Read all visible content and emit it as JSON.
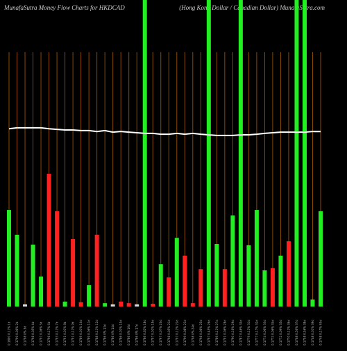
{
  "chart_data": {
    "type": "bar",
    "title": "MunafaSutra  Money  Flow  Charts for HKDCAD",
    "subtitle": "(Hong Kong Dollar / Canadian Dollar) MunafaSutra.com",
    "categories": [
      "0.1800 0.11% 1d",
      "0.1799 0.06% 2d",
      "0.1798 0% 3d",
      "0.1798 0.05% 4d",
      "0.1797 0.06% 5d",
      "0.1796 0.17% 6d",
      "0.1793 0.11% 7d",
      "0.1791 0.01% 8d",
      "0.1791 0.11% 9d",
      "0.1789 0.01% 10d",
      "0.1789 0.06% 11d",
      "0.1788 0.11% 12d",
      "0.1786 0% 13d",
      "0.1786 0% 14d",
      "0.1786 0.01% 15d",
      "0.1786 0% 16d",
      "0.1786 0% 17d",
      "0.1786 0.62% 18d",
      "0.1797 0.01% 19d",
      "0.1797 0.07% 20d",
      "0.1798 0.05% 21d",
      "0.1797 0.11% 22d",
      "0.1799 0.08% 23d",
      "0.1798 0% 24d",
      "0.1798 0.06% 25d",
      "0.1797 0.45% 26d",
      "0.1789 0.11% 27d",
      "0.1791 0.06% 28d",
      "0.1790 0.16% 29d",
      "0.1787 0.46% 30d",
      "0.1779 0.11% 31d",
      "0.1777 0.17% 32d",
      "0.1774 0.06% 33d",
      "0.1773 0.06% 34d",
      "0.1772 0.09% 35d",
      "0.1770 0.11% 36d",
      "0.1768 0.56% 37d",
      "0.1758 0.56% 38d",
      "0.1748 0.01% 39d",
      "0.1748 0.17% 40d"
    ],
    "values": [
      31.5,
      23.4,
      0.7,
      20.2,
      9.8,
      43.3,
      31.1,
      1.6,
      22.0,
      1.4,
      7.0,
      23.4,
      1.1,
      0.7,
      1.6,
      1.1,
      0.7,
      100,
      0.9,
      13.8,
      9.5,
      22.4,
      16.6,
      1.1,
      12.2,
      100,
      20.4,
      12.2,
      29.7,
      100,
      20.0,
      31.5,
      11.8,
      12.5,
      16.6,
      21.3,
      100,
      100,
      2.3,
      31.1
    ],
    "colors": [
      "#22ee22",
      "#22ee22",
      "#dddddd",
      "#22ee22",
      "#22ee22",
      "#ff2020",
      "#ff2020",
      "#22ee22",
      "#ff2020",
      "#ff2020",
      "#22ee22",
      "#ff2020",
      "#22ee22",
      "#dddddd",
      "#ff2020",
      "#ff2020",
      "#dddddd",
      "#22ee22",
      "#ff2020",
      "#22ee22",
      "#ff2020",
      "#22ee22",
      "#ff2020",
      "#ff2020",
      "#ff2020",
      "#22ee22",
      "#22ee22",
      "#ff2020",
      "#22ee22",
      "#22ee22",
      "#22ee22",
      "#22ee22",
      "#22ee22",
      "#ff2020",
      "#22ee22",
      "#ff2020",
      "#22ee22",
      "#22ee22",
      "#22ee22",
      "#22ee22"
    ],
    "line": {
      "color": "#ffffff",
      "values": [
        58.0,
        58.3,
        58.3,
        58.3,
        58.3,
        58.0,
        57.8,
        57.6,
        57.6,
        57.4,
        57.4,
        57.1,
        57.4,
        56.9,
        57.1,
        56.9,
        56.7,
        56.5,
        56.5,
        56.2,
        56.2,
        56.5,
        56.2,
        56.5,
        56.2,
        56.0,
        55.8,
        55.8,
        55.8,
        56.0,
        56.0,
        56.2,
        56.5,
        56.7,
        56.9,
        56.9,
        56.9,
        56.9,
        57.1,
        57.1
      ]
    },
    "ylim": [
      0,
      100
    ],
    "gridline_color": "#8b4a00"
  }
}
